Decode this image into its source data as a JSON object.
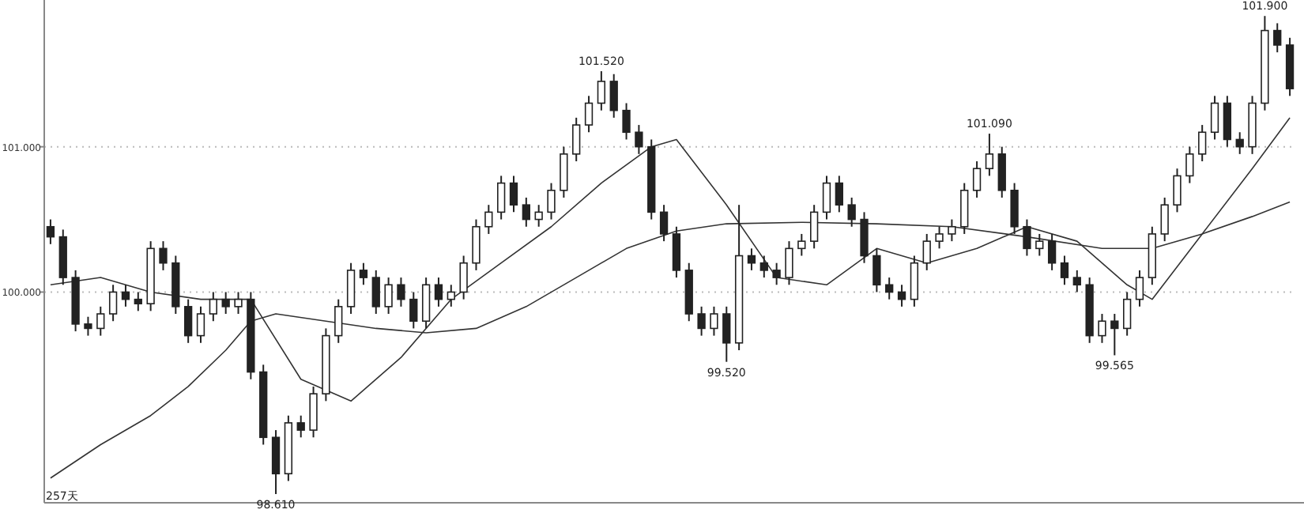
{
  "chart_data": {
    "type": "candlestick",
    "color": "#222222",
    "categories": [
      null,
      null,
      null,
      null,
      null,
      null,
      null,
      null,
      null,
      null,
      null,
      null,
      null,
      null,
      null,
      null,
      null,
      null,
      null,
      null,
      null,
      null,
      null,
      null,
      null,
      null,
      null,
      null,
      null,
      null,
      null,
      null,
      null,
      null,
      null,
      null,
      null,
      null,
      null,
      null,
      null,
      null,
      null,
      null,
      null,
      null,
      null,
      null,
      null,
      null,
      null,
      null,
      null,
      null,
      null,
      null,
      null,
      null,
      null,
      null,
      null,
      null,
      null,
      null,
      null,
      null,
      null,
      null,
      null,
      null,
      null,
      null,
      null,
      null,
      null,
      null,
      null,
      null,
      null,
      null,
      null,
      null,
      null,
      null,
      null,
      null,
      null,
      null,
      null,
      null,
      null,
      null,
      null,
      null,
      null,
      null,
      null,
      null,
      null,
      null
    ],
    "ohlc": [
      [
        100.45,
        100.5,
        100.33,
        100.38
      ],
      [
        100.38,
        100.43,
        100.05,
        100.1
      ],
      [
        100.1,
        100.15,
        99.73,
        99.78
      ],
      [
        99.78,
        99.83,
        99.7,
        99.75
      ],
      [
        99.75,
        99.9,
        99.7,
        99.85
      ],
      [
        99.85,
        100.05,
        99.8,
        100.0
      ],
      [
        100.0,
        100.05,
        99.9,
        99.95
      ],
      [
        99.95,
        100.0,
        99.87,
        99.92
      ],
      [
        99.92,
        100.35,
        99.87,
        100.3
      ],
      [
        100.3,
        100.35,
        100.15,
        100.2
      ],
      [
        100.2,
        100.25,
        99.85,
        99.9
      ],
      [
        99.9,
        99.95,
        99.65,
        99.7
      ],
      [
        99.7,
        99.9,
        99.65,
        99.85
      ],
      [
        99.85,
        100.0,
        99.8,
        99.95
      ],
      [
        99.95,
        100.0,
        99.85,
        99.9
      ],
      [
        99.9,
        100.0,
        99.85,
        99.95
      ],
      [
        99.95,
        100.0,
        99.4,
        99.45
      ],
      [
        99.45,
        99.5,
        98.95,
        99.0
      ],
      [
        99.0,
        99.05,
        98.61,
        98.75
      ],
      [
        98.75,
        99.15,
        98.7,
        99.1
      ],
      [
        99.1,
        99.15,
        99.0,
        99.05
      ],
      [
        99.05,
        99.35,
        99.0,
        99.3
      ],
      [
        99.3,
        99.75,
        99.25,
        99.7
      ],
      [
        99.7,
        99.95,
        99.65,
        99.9
      ],
      [
        99.9,
        100.2,
        99.85,
        100.15
      ],
      [
        100.15,
        100.2,
        100.05,
        100.1
      ],
      [
        100.1,
        100.15,
        99.85,
        99.9
      ],
      [
        99.9,
        100.1,
        99.85,
        100.05
      ],
      [
        100.05,
        100.1,
        99.9,
        99.95
      ],
      [
        99.95,
        100.0,
        99.75,
        99.8
      ],
      [
        99.8,
        100.1,
        99.75,
        100.05
      ],
      [
        100.05,
        100.1,
        99.9,
        99.95
      ],
      [
        99.95,
        100.05,
        99.9,
        100.0
      ],
      [
        100.0,
        100.25,
        99.95,
        100.2
      ],
      [
        100.2,
        100.5,
        100.15,
        100.45
      ],
      [
        100.45,
        100.6,
        100.4,
        100.55
      ],
      [
        100.55,
        100.8,
        100.5,
        100.75
      ],
      [
        100.75,
        100.8,
        100.55,
        100.6
      ],
      [
        100.6,
        100.65,
        100.45,
        100.5
      ],
      [
        100.5,
        100.6,
        100.45,
        100.55
      ],
      [
        100.55,
        100.75,
        100.5,
        100.7
      ],
      [
        100.7,
        101.0,
        100.65,
        100.95
      ],
      [
        100.95,
        101.2,
        100.9,
        101.15
      ],
      [
        101.15,
        101.35,
        101.1,
        101.3
      ],
      [
        101.3,
        101.52,
        101.25,
        101.45
      ],
      [
        101.45,
        101.5,
        101.2,
        101.25
      ],
      [
        101.25,
        101.3,
        101.05,
        101.1
      ],
      [
        101.1,
        101.15,
        100.95,
        101.0
      ],
      [
        101.0,
        101.05,
        100.5,
        100.55
      ],
      [
        100.55,
        100.6,
        100.35,
        100.4
      ],
      [
        100.4,
        100.45,
        100.1,
        100.15
      ],
      [
        100.15,
        100.2,
        99.8,
        99.85
      ],
      [
        99.85,
        99.9,
        99.7,
        99.75
      ],
      [
        99.75,
        99.9,
        99.7,
        99.85
      ],
      [
        99.85,
        99.9,
        99.52,
        99.65
      ],
      [
        99.65,
        100.6,
        99.6,
        100.25
      ],
      [
        100.25,
        100.3,
        100.15,
        100.2
      ],
      [
        100.2,
        100.25,
        100.1,
        100.15
      ],
      [
        100.15,
        100.2,
        100.05,
        100.1
      ],
      [
        100.1,
        100.35,
        100.05,
        100.3
      ],
      [
        100.3,
        100.4,
        100.25,
        100.35
      ],
      [
        100.35,
        100.6,
        100.3,
        100.55
      ],
      [
        100.55,
        100.8,
        100.5,
        100.75
      ],
      [
        100.75,
        100.8,
        100.55,
        100.6
      ],
      [
        100.6,
        100.65,
        100.45,
        100.5
      ],
      [
        100.5,
        100.55,
        100.2,
        100.25
      ],
      [
        100.25,
        100.3,
        100.0,
        100.05
      ],
      [
        100.05,
        100.1,
        99.95,
        100.0
      ],
      [
        100.0,
        100.05,
        99.9,
        99.95
      ],
      [
        99.95,
        100.25,
        99.9,
        100.2
      ],
      [
        100.2,
        100.4,
        100.15,
        100.35
      ],
      [
        100.35,
        100.45,
        100.3,
        100.4
      ],
      [
        100.4,
        100.5,
        100.35,
        100.45
      ],
      [
        100.45,
        100.75,
        100.4,
        100.7
      ],
      [
        100.7,
        100.9,
        100.65,
        100.85
      ],
      [
        100.85,
        101.09,
        100.8,
        100.95
      ],
      [
        100.95,
        101.0,
        100.65,
        100.7
      ],
      [
        100.7,
        100.75,
        100.4,
        100.45
      ],
      [
        100.45,
        100.5,
        100.25,
        100.3
      ],
      [
        100.3,
        100.4,
        100.25,
        100.35
      ],
      [
        100.35,
        100.4,
        100.15,
        100.2
      ],
      [
        100.2,
        100.25,
        100.05,
        100.1
      ],
      [
        100.1,
        100.15,
        100.0,
        100.05
      ],
      [
        100.05,
        100.1,
        99.65,
        99.7
      ],
      [
        99.7,
        99.85,
        99.65,
        99.8
      ],
      [
        99.8,
        99.85,
        99.565,
        99.75
      ],
      [
        99.75,
        100.0,
        99.7,
        99.95
      ],
      [
        99.95,
        100.15,
        99.9,
        100.1
      ],
      [
        100.1,
        100.45,
        100.05,
        100.4
      ],
      [
        100.4,
        100.65,
        100.35,
        100.6
      ],
      [
        100.6,
        100.85,
        100.55,
        100.8
      ],
      [
        100.8,
        101.0,
        100.75,
        100.95
      ],
      [
        100.95,
        101.15,
        100.9,
        101.1
      ],
      [
        101.1,
        101.35,
        101.05,
        101.3
      ],
      [
        101.3,
        101.35,
        101.0,
        101.05
      ],
      [
        101.05,
        101.1,
        100.95,
        101.0
      ],
      [
        101.0,
        101.35,
        100.95,
        101.3
      ],
      [
        101.3,
        101.9,
        101.25,
        101.8
      ],
      [
        101.8,
        101.85,
        101.65,
        101.7
      ],
      [
        101.7,
        101.75,
        101.35,
        101.4
      ]
    ],
    "series": [
      {
        "type": "line",
        "color": "#333333",
        "values": [
          98.72,
          null,
          null,
          null,
          98.95,
          null,
          null,
          null,
          99.15,
          null,
          null,
          99.35,
          null,
          null,
          99.6,
          null,
          99.8,
          null,
          99.85,
          null,
          null,
          null,
          99.8,
          null,
          null,
          null,
          99.75,
          null,
          null,
          null,
          99.72,
          null,
          null,
          null,
          99.75,
          null,
          null,
          null,
          99.9,
          null,
          null,
          null,
          100.1,
          null,
          null,
          null,
          100.3,
          null,
          null,
          null,
          100.42,
          null,
          null,
          null,
          100.47,
          null,
          null,
          null,
          null,
          null,
          100.48,
          null,
          null,
          null,
          null,
          null,
          100.47,
          null,
          null,
          null,
          null,
          null,
          100.45,
          null,
          null,
          null,
          null,
          null,
          100.38,
          null,
          null,
          null,
          null,
          null,
          100.3,
          null,
          null,
          null,
          100.3,
          null,
          null,
          null,
          100.4,
          null,
          null,
          null,
          100.52,
          null,
          null,
          100.62
        ]
      },
      {
        "type": "line",
        "color": "#333333",
        "values": [
          100.05,
          null,
          null,
          null,
          100.1,
          null,
          null,
          null,
          100.0,
          null,
          null,
          null,
          99.95,
          null,
          null,
          null,
          99.95,
          null,
          null,
          null,
          99.4,
          null,
          null,
          null,
          99.25,
          null,
          null,
          null,
          99.55,
          null,
          null,
          null,
          99.95,
          null,
          null,
          null,
          100.2,
          null,
          null,
          null,
          100.45,
          null,
          null,
          null,
          100.75,
          null,
          null,
          null,
          101.0,
          null,
          101.05,
          null,
          null,
          null,
          100.6,
          null,
          null,
          null,
          100.1,
          null,
          null,
          null,
          100.05,
          null,
          null,
          null,
          100.3,
          null,
          null,
          null,
          100.2,
          null,
          null,
          null,
          100.3,
          null,
          null,
          null,
          100.45,
          null,
          null,
          null,
          100.35,
          null,
          null,
          null,
          100.05,
          null,
          99.95,
          null,
          null,
          null,
          100.4,
          null,
          null,
          null,
          100.85,
          null,
          null,
          101.2
        ]
      }
    ],
    "ylim": [
      98.55,
      102.01
    ],
    "yticks": [
      {
        "value": 100,
        "label": "100.000"
      },
      {
        "value": 101,
        "label": "101.000"
      }
    ],
    "grid": "y",
    "annotations": [
      {
        "text": "98.610",
        "y": 98.61
      },
      {
        "text": "101.520",
        "y": 101.52
      },
      {
        "text": "99.520",
        "y": 99.52
      },
      {
        "text": "101.090",
        "y": 101.09
      },
      {
        "text": "99.565",
        "y": 99.565
      },
      {
        "text": "101.900",
        "y": 101.9
      },
      "257天"
    ]
  }
}
